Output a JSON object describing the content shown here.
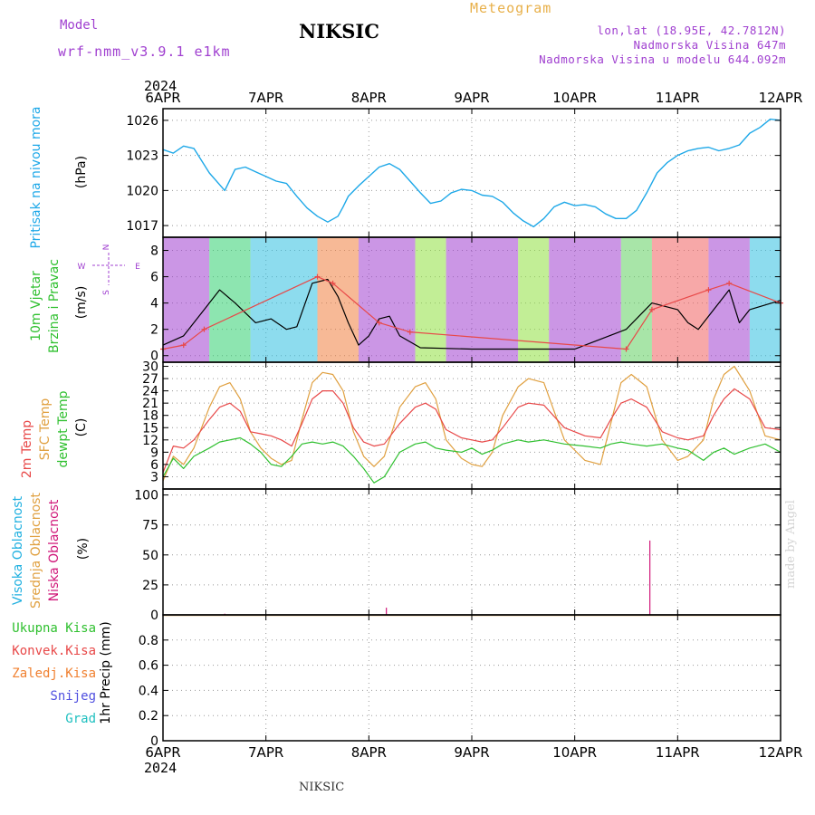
{
  "header": {
    "model_label": "Model",
    "model_run": "wrf-nmm_v3.9.1 e1km",
    "station": "NIKSIC",
    "meteogram": "Meteogram",
    "lonlat": "lon,lat (18.95E, 42.7812N)",
    "altitude": "Nadmorska Visina 647m",
    "model_altitude": "Nadmorska Visina u modelu 644.092m",
    "year_top": "2024",
    "year_bottom": "2024",
    "footer_station": "NIKSIC",
    "credit": "made by Angel"
  },
  "colors": {
    "pressure": "#1ea8e8",
    "temp2m": "#e84848",
    "sfc_temp": "#e0a040",
    "dewpt": "#30c030",
    "high_cloud": "#20b0e0",
    "mid_cloud": "#e0a040",
    "low_cloud": "#d0187a",
    "wind_speed": "#000000",
    "gust": "#e84848",
    "purple": "#a040d0"
  },
  "panels": {
    "pressure": {
      "label1": "Pritisak na nivou mora",
      "unit": "(hPa)"
    },
    "wind": {
      "label1": "10m Vjetar",
      "label2": "Brzina i Pravac",
      "unit": "(m/s)",
      "compass_n": "N",
      "compass_s": "S",
      "compass_e": "E",
      "compass_w": "W"
    },
    "temp": {
      "label1": "2m Temp",
      "label2": "SFC Temp",
      "label3": "dewpt Temp",
      "unit": "(C)"
    },
    "cloud": {
      "label1": "Visoka Oblacnost",
      "label2": "Srednja Oblacnost",
      "label3": "Niska Oblacnost",
      "unit": "(%)"
    },
    "precip": {
      "unit": "1hr Precip (mm)",
      "legend": [
        "Ukupna Kisa",
        "Konvek.Kisa",
        "Zaledj.Kisa",
        "Snijeg",
        "Grad"
      ],
      "legend_colors": [
        "#30c030",
        "#e84848",
        "#f08030",
        "#5050e0",
        "#20c0c0"
      ]
    }
  },
  "chart_data": [
    {
      "type": "line",
      "title": "Pritisak na nivou mora",
      "ylabel": "(hPa)",
      "x_categories": [
        "6APR",
        "7APR",
        "8APR",
        "9APR",
        "10APR",
        "11APR",
        "12APR"
      ],
      "x_range_days": [
        0,
        6
      ],
      "ylim": [
        1016,
        1027
      ],
      "yticks": [
        1017,
        1020,
        1023,
        1026
      ],
      "series": [
        {
          "name": "pressure",
          "x": [
            0,
            0.1,
            0.2,
            0.3,
            0.45,
            0.6,
            0.7,
            0.8,
            0.9,
            1.0,
            1.1,
            1.2,
            1.3,
            1.4,
            1.5,
            1.6,
            1.7,
            1.75,
            1.8,
            1.9,
            2.0,
            2.1,
            2.2,
            2.3,
            2.4,
            2.5,
            2.6,
            2.7,
            2.8,
            2.9,
            3.0,
            3.1,
            3.2,
            3.3,
            3.4,
            3.5,
            3.6,
            3.7,
            3.8,
            3.9,
            4.0,
            4.1,
            4.2,
            4.3,
            4.4,
            4.5,
            4.6,
            4.7,
            4.8,
            4.9,
            5.0,
            5.1,
            5.2,
            5.3,
            5.4,
            5.5,
            5.6,
            5.7,
            5.8,
            5.9,
            6.0
          ],
          "values": [
            1023.5,
            1023.2,
            1023.8,
            1023.6,
            1021.5,
            1020.0,
            1021.8,
            1022.0,
            1021.6,
            1021.2,
            1020.8,
            1020.6,
            1019.5,
            1018.5,
            1017.8,
            1017.3,
            1017.8,
            1018.6,
            1019.5,
            1020.4,
            1021.2,
            1022.0,
            1022.3,
            1021.8,
            1020.8,
            1019.8,
            1018.9,
            1019.1,
            1019.8,
            1020.1,
            1020.0,
            1019.6,
            1019.5,
            1019.0,
            1018.1,
            1017.4,
            1016.9,
            1017.6,
            1018.6,
            1019.0,
            1018.7,
            1018.8,
            1018.6,
            1018.0,
            1017.6,
            1017.6,
            1018.3,
            1019.8,
            1021.5,
            1022.4,
            1023.0,
            1023.4,
            1023.6,
            1023.7,
            1023.4,
            1023.6,
            1023.9,
            1024.9,
            1025.4,
            1026.1,
            1026.0
          ]
        }
      ]
    },
    {
      "type": "line",
      "title": "10m Vjetar Brzina i Pravac",
      "ylabel": "(m/s)",
      "x_range_days": [
        0,
        6
      ],
      "ylim": [
        -0.5,
        9
      ],
      "yticks": [
        0,
        2,
        4,
        6,
        8
      ],
      "series": [
        {
          "name": "wind speed",
          "x": [
            0,
            0.2,
            0.4,
            0.55,
            0.7,
            0.9,
            1.05,
            1.2,
            1.3,
            1.45,
            1.6,
            1.7,
            1.8,
            1.9,
            2.0,
            2.1,
            2.2,
            2.3,
            2.5,
            3.0,
            3.5,
            4.0,
            4.5,
            4.75,
            5.0,
            5.1,
            5.2,
            5.3,
            5.5,
            5.6,
            5.7,
            6.0
          ],
          "values": [
            0.8,
            1.5,
            3.5,
            5.0,
            4.0,
            2.5,
            2.8,
            2.0,
            2.2,
            5.5,
            5.8,
            4.5,
            2.5,
            0.8,
            1.5,
            2.8,
            3.0,
            1.5,
            0.6,
            0.5,
            0.5,
            0.5,
            2.0,
            4.0,
            3.5,
            2.5,
            2.0,
            3.0,
            5.0,
            2.5,
            3.5,
            4.2
          ]
        },
        {
          "name": "gust",
          "x": [
            0,
            0.2,
            0.4,
            1.5,
            1.65,
            2.1,
            2.4,
            4.5,
            4.75,
            5.3,
            5.5,
            6.0
          ],
          "values": [
            0.5,
            0.8,
            2.0,
            6.0,
            5.5,
            2.5,
            1.8,
            0.5,
            3.5,
            5.0,
            5.5,
            4.0
          ]
        }
      ]
    },
    {
      "type": "line",
      "title": "2m Temp / SFC Temp / dewpt Temp",
      "ylabel": "(C)",
      "x_range_days": [
        0,
        6
      ],
      "ylim": [
        0,
        31
      ],
      "yticks": [
        3,
        6,
        9,
        12,
        15,
        18,
        21,
        24,
        27,
        30
      ],
      "series": [
        {
          "name": "2m Temp",
          "x": [
            0,
            0.1,
            0.2,
            0.3,
            0.45,
            0.55,
            0.65,
            0.75,
            0.85,
            0.95,
            1.05,
            1.15,
            1.25,
            1.35,
            1.45,
            1.55,
            1.65,
            1.75,
            1.85,
            1.95,
            2.05,
            2.15,
            2.3,
            2.45,
            2.55,
            2.65,
            2.75,
            2.9,
            3.0,
            3.1,
            3.2,
            3.3,
            3.45,
            3.55,
            3.7,
            3.9,
            4.1,
            4.25,
            4.35,
            4.45,
            4.55,
            4.7,
            4.85,
            5.0,
            5.1,
            5.25,
            5.35,
            5.45,
            5.55,
            5.7,
            5.85,
            6.0
          ],
          "values": [
            4,
            10.5,
            10,
            12,
            17,
            20,
            21,
            19,
            14,
            13.5,
            13,
            12,
            10.5,
            16,
            22,
            24,
            24,
            21,
            15,
            11.5,
            10.5,
            11,
            16,
            20,
            21,
            19.5,
            14.5,
            12.5,
            12,
            11.5,
            12,
            15,
            20,
            21,
            20.5,
            15,
            13,
            12.5,
            17,
            21,
            22,
            20,
            14,
            12.5,
            12,
            13,
            18,
            22,
            24.5,
            22,
            15,
            14.5
          ]
        },
        {
          "name": "SFC Temp",
          "x": [
            0,
            0.1,
            0.2,
            0.3,
            0.45,
            0.55,
            0.65,
            0.75,
            0.85,
            0.95,
            1.05,
            1.15,
            1.25,
            1.35,
            1.45,
            1.55,
            1.65,
            1.75,
            1.85,
            1.95,
            2.05,
            2.15,
            2.3,
            2.45,
            2.55,
            2.65,
            2.75,
            2.9,
            3.0,
            3.1,
            3.2,
            3.3,
            3.45,
            3.55,
            3.7,
            3.9,
            4.1,
            4.25,
            4.35,
            4.45,
            4.55,
            4.7,
            4.85,
            5.0,
            5.1,
            5.25,
            5.35,
            5.45,
            5.55,
            5.7,
            5.85,
            6.0
          ],
          "values": [
            2,
            8,
            6,
            10,
            20,
            25,
            26,
            22,
            14,
            10,
            7.5,
            6,
            7,
            17,
            26,
            28.5,
            28,
            24,
            14,
            8,
            5.5,
            8,
            20,
            25,
            26,
            22,
            12,
            7.5,
            6,
            5.5,
            9,
            18,
            25,
            27,
            26,
            12,
            7,
            6,
            16,
            26,
            28,
            25,
            12,
            7,
            8,
            12,
            22,
            28,
            30,
            24,
            13,
            12
          ]
        },
        {
          "name": "dewpt Temp",
          "x": [
            0,
            0.1,
            0.2,
            0.3,
            0.45,
            0.55,
            0.65,
            0.75,
            0.85,
            0.95,
            1.05,
            1.15,
            1.25,
            1.35,
            1.45,
            1.55,
            1.65,
            1.75,
            1.85,
            1.95,
            2.05,
            2.15,
            2.3,
            2.45,
            2.55,
            2.65,
            2.75,
            2.9,
            3.0,
            3.1,
            3.2,
            3.3,
            3.45,
            3.55,
            3.7,
            3.9,
            4.1,
            4.25,
            4.35,
            4.45,
            4.55,
            4.7,
            4.85,
            5.0,
            5.1,
            5.25,
            5.35,
            5.45,
            5.55,
            5.7,
            5.85,
            6.0
          ],
          "values": [
            3,
            7.5,
            5,
            8,
            10,
            11.5,
            12,
            12.5,
            11,
            9,
            6,
            5.5,
            8,
            11,
            11.5,
            11,
            11.5,
            10.5,
            8,
            5,
            1.5,
            3,
            9,
            11,
            11.5,
            10,
            9.5,
            9,
            10,
            8.5,
            9.5,
            11,
            12,
            11.5,
            12,
            11,
            10.5,
            10,
            11,
            11.5,
            11,
            10.5,
            11,
            10,
            9.5,
            7,
            9,
            10,
            8.5,
            10,
            11,
            9
          ]
        }
      ]
    },
    {
      "type": "bar",
      "title": "Visoka / Srednja / Niska Oblacnost",
      "ylabel": "(%)",
      "x_range_days": [
        0,
        6
      ],
      "ylim": [
        0,
        105
      ],
      "yticks": [
        0,
        25,
        50,
        75,
        100
      ],
      "series": [
        {
          "name": "Niska Oblacnost",
          "x": [
            0.6,
            2.17,
            4.73
          ],
          "values": [
            1,
            6,
            62
          ]
        }
      ]
    },
    {
      "type": "bar",
      "title": "1hr Precip",
      "ylabel": "1hr Precip (mm)",
      "x_categories": [
        "6APR",
        "7APR",
        "8APR",
        "9APR",
        "10APR",
        "11APR",
        "12APR"
      ],
      "x_range_days": [
        0,
        6
      ],
      "ylim": [
        0,
        1.0
      ],
      "yticks": [
        0,
        0.2,
        0.4,
        0.6,
        0.8
      ],
      "series": [
        {
          "name": "Ukupna Kisa",
          "x": [],
          "values": []
        }
      ]
    }
  ]
}
